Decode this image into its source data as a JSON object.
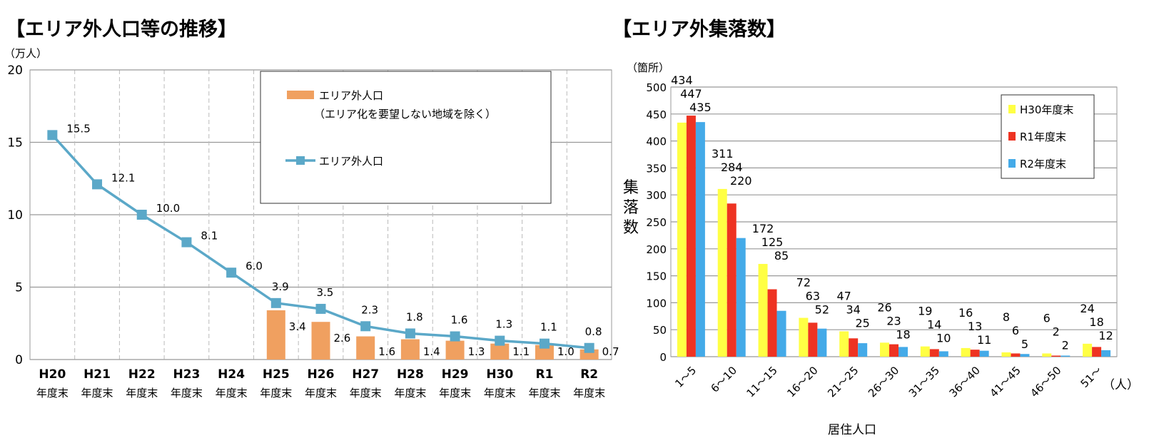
{
  "chart_data": [
    {
      "type": "bar+line",
      "title": "【エリア外人口等の推移】",
      "ylabel": "（万人）",
      "ylim": [
        0,
        20
      ],
      "yticks": [
        0,
        5,
        10,
        15,
        20
      ],
      "grid": true,
      "legend_placement": "top-right",
      "categories": [
        "H20",
        "H21",
        "H22",
        "H23",
        "H24",
        "H25",
        "H26",
        "H27",
        "H28",
        "H29",
        "H30",
        "R1",
        "R2"
      ],
      "category_suffix": "年度末",
      "series": [
        {
          "name": "エリア外人口",
          "name_note": "（エリア化を要望しない地域を除く）",
          "type": "bar",
          "color": "#F0A060",
          "values": [
            null,
            null,
            null,
            null,
            null,
            3.4,
            2.6,
            1.6,
            1.4,
            1.3,
            1.1,
            1.0,
            0.7
          ]
        },
        {
          "name": "エリア外人口",
          "type": "line",
          "color": "#5BA8C8",
          "values": [
            15.5,
            12.1,
            10.0,
            8.1,
            6.0,
            3.9,
            3.5,
            2.3,
            1.8,
            1.6,
            1.3,
            1.1,
            0.8
          ]
        }
      ]
    },
    {
      "type": "bar",
      "title": "【エリア外集落数】",
      "yunit": "（箇所）",
      "ylabel": "集落数",
      "xlabel": "居住人口",
      "xunit": "（人）",
      "ylim": [
        0,
        500
      ],
      "yticks": [
        0,
        50,
        100,
        150,
        200,
        250,
        300,
        350,
        400,
        450,
        500
      ],
      "grid": true,
      "legend_placement": "top-right",
      "categories": [
        "1～5",
        "6～10",
        "11～15",
        "16～20",
        "21～25",
        "26～30",
        "31～35",
        "36～40",
        "41～45",
        "46～50",
        "51～"
      ],
      "series": [
        {
          "name": "H30年度末",
          "color": "#FFFF44",
          "values": [
            434,
            311,
            172,
            72,
            47,
            26,
            19,
            16,
            8,
            6,
            24
          ]
        },
        {
          "name": "R1年度末",
          "color": "#EE3322",
          "values": [
            447,
            284,
            125,
            63,
            34,
            23,
            14,
            13,
            6,
            2,
            18
          ]
        },
        {
          "name": "R2年度末",
          "color": "#44AAE8",
          "values": [
            435,
            220,
            85,
            52,
            25,
            18,
            10,
            11,
            5,
            2,
            12
          ]
        }
      ]
    }
  ]
}
